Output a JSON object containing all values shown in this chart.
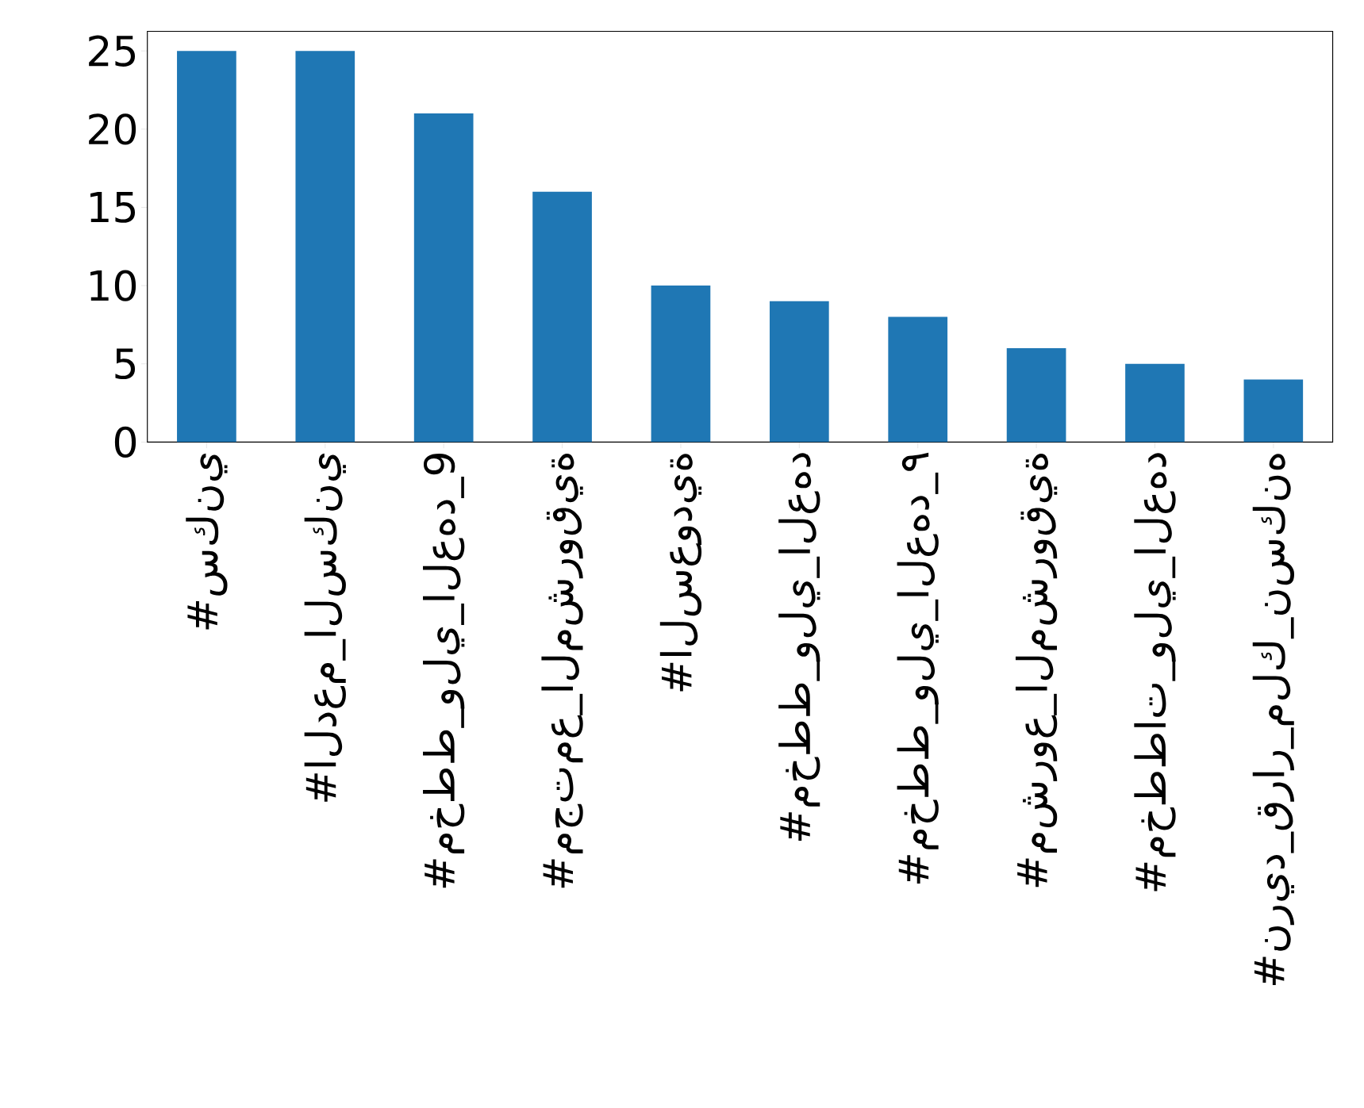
{
  "chart_data": {
    "type": "bar",
    "categories": [
      "#سكني",
      "#الدعم_السكني",
      "#مخطط_ولي_العهد_9",
      "#مجتمع_المشروقية",
      "#السعودية",
      "#مخطط_ولي_العهد",
      "#مخطط_ولي_العهد_٩",
      "#مشروع_المشروقية",
      "#مخططات_ولي_العهد",
      "#نريد_قرار_ملك_نسكنه"
    ],
    "values": [
      25,
      25,
      21,
      16,
      10,
      9,
      8,
      6,
      5,
      4
    ],
    "color": "#1f77b4",
    "ylim": [
      0,
      26.25
    ],
    "yticks": [
      0,
      5,
      10,
      15,
      20,
      25
    ]
  }
}
